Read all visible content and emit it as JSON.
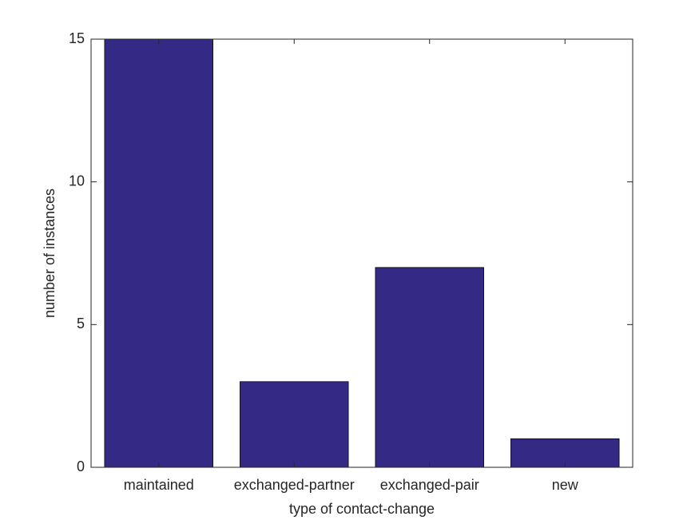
{
  "chart_data": {
    "type": "bar",
    "categories": [
      "maintained",
      "exchanged-partner",
      "exchanged-pair",
      "new"
    ],
    "values": [
      15,
      3,
      7,
      1
    ],
    "color": "#342a85",
    "xlabel": "type of contact-change",
    "ylabel": "number of instances",
    "ylim": [
      0,
      15
    ],
    "yticks": [
      0,
      5,
      10,
      15
    ],
    "grid": false
  }
}
